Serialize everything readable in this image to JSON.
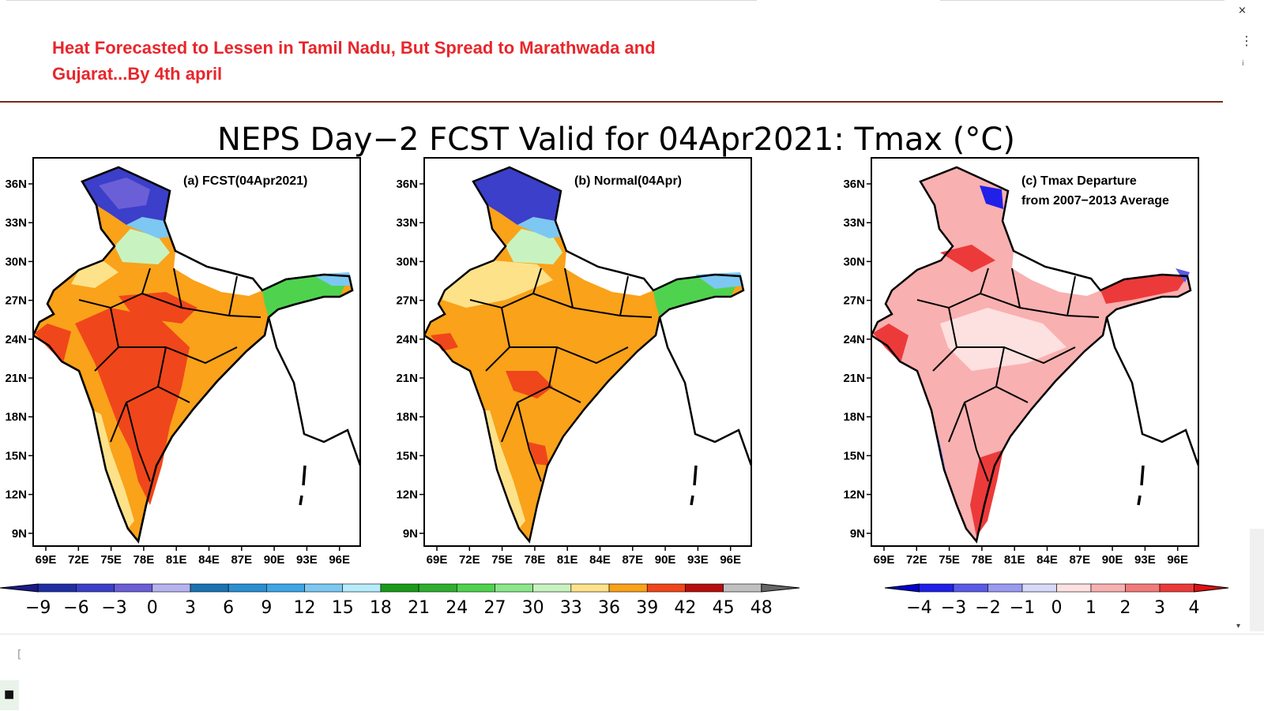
{
  "headline": "Heat Forecasted to Lessen in Tamil Nadu, But Spread to Marathwada and Gujarat...By 4th april",
  "window": {
    "close_glyph": "×",
    "menu_glyph": "⋮",
    "minor_glyph": "i",
    "scroll_glyph": "▾",
    "cursor_glyph": "["
  },
  "figure_title": "NEPS Day−2 FCST Valid for 04Apr2021: Tmax (°C)",
  "panels": [
    {
      "id": "a",
      "title": "(a) FCST(04Apr2021)"
    },
    {
      "id": "b",
      "title": "(b) Normal(04Apr)"
    },
    {
      "id": "c",
      "title": "(c) Tmax Departure",
      "subtitle": "from 2007−2013 Average"
    }
  ],
  "lat_ticks": [
    "36N",
    "33N",
    "30N",
    "27N",
    "24N",
    "21N",
    "18N",
    "15N",
    "12N",
    "9N"
  ],
  "lon_ticks": [
    "69E",
    "72E",
    "75E",
    "78E",
    "81E",
    "84E",
    "87E",
    "90E",
    "93E",
    "96E"
  ],
  "colorbar_main": {
    "labels": [
      "−9",
      "−6",
      "−3",
      "0",
      "3",
      "6",
      "9",
      "12",
      "15",
      "18",
      "21",
      "24",
      "27",
      "30",
      "33",
      "36",
      "39",
      "42",
      "45",
      "48"
    ],
    "colors": [
      "#1f2fa3",
      "#3b3fc9",
      "#6a5fd6",
      "#b7b3ef",
      "#1b73b3",
      "#2a8fd1",
      "#3ea6e6",
      "#7cc8f2",
      "#b6ecfb",
      "#1a9a1a",
      "#2fae2f",
      "#4fd34f",
      "#8be78b",
      "#c8f3c0",
      "#fde28a",
      "#f9a21a",
      "#f0461b",
      "#b50e0e",
      "#c0c0c0"
    ],
    "under_color": "#1a1a8a",
    "over_color": "#666666"
  },
  "colorbar_dep": {
    "labels": [
      "−4",
      "−3",
      "−2",
      "−1",
      "0",
      "1",
      "2",
      "3",
      "4"
    ],
    "colors": [
      "#2020e8",
      "#5a5ae8",
      "#9a9af0",
      "#d8d8fa",
      "#fde0e0",
      "#f9b0b0",
      "#f27a7a",
      "#ec3a3a"
    ],
    "under_color": "#0000cc",
    "over_color": "#e01010"
  },
  "map_colors": {
    "hot": "#f0461b",
    "warm": "#f9a21a",
    "mild": "#fde28a",
    "light_green": "#c8f3c0",
    "green": "#4fd34f",
    "cyan": "#7cc8f2",
    "blue": "#3b3fc9",
    "purple": "#b7b3ef",
    "dep_pink": "#f9b0b0",
    "dep_red": "#ec3a3a",
    "dep_pale": "#fde0e0",
    "dep_blue": "#2020e8"
  }
}
